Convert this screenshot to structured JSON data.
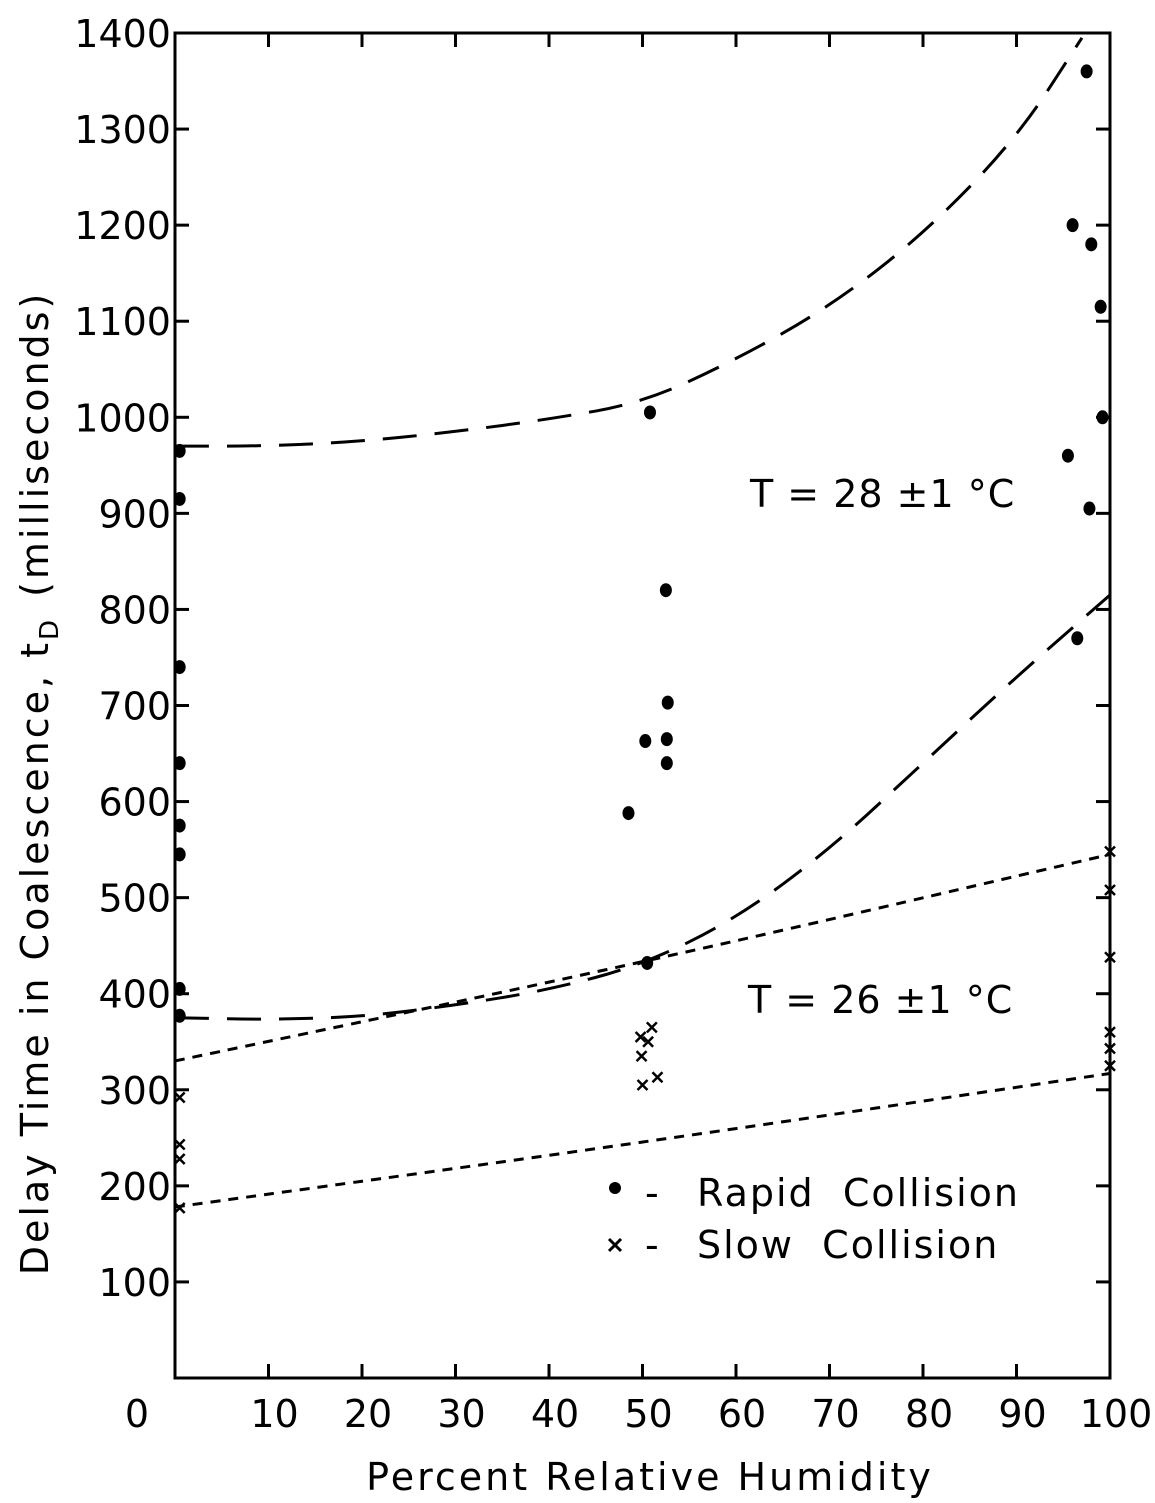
{
  "chart_data": {
    "type": "scatter",
    "xlabel": "Percent Relative Humidity",
    "ylabel": "Delay Time in Coalescence, t",
    "ylabel_sub": "D",
    "ylabel_unit": "(milliseconds)",
    "xlim": [
      0,
      100
    ],
    "ylim": [
      0,
      1400
    ],
    "x_ticks": [
      0,
      10,
      20,
      30,
      40,
      50,
      60,
      70,
      80,
      90,
      100
    ],
    "x_tick_labels": [
      "0",
      "10",
      "20",
      "30",
      "40",
      "50",
      "60",
      "70",
      "80",
      "90",
      "100"
    ],
    "y_ticks": [
      100,
      200,
      300,
      400,
      500,
      600,
      700,
      800,
      900,
      1000,
      1100,
      1200,
      1300,
      1400
    ],
    "y_tick_labels": [
      "100",
      "200",
      "300",
      "400",
      "500",
      "600",
      "700",
      "800",
      "900",
      "1000",
      "1100",
      "1200",
      "1300",
      "1400"
    ],
    "grid": false,
    "legend_position": "bottom-right",
    "annotations": [
      {
        "text": "T = 28 ±1 °C",
        "x": 62,
        "y": 910
      },
      {
        "text": "T = 26 ±1 °C",
        "x": 62,
        "y": 380
      }
    ],
    "series": [
      {
        "name": "Rapid Collision",
        "marker": "dot",
        "points": [
          [
            0.5,
            965
          ],
          [
            0.5,
            915
          ],
          [
            0.5,
            740
          ],
          [
            0.5,
            640
          ],
          [
            0.5,
            575
          ],
          [
            0.5,
            545
          ],
          [
            0.5,
            405
          ],
          [
            0.5,
            377
          ],
          [
            48.5,
            588
          ],
          [
            50.3,
            663
          ],
          [
            50.5,
            432
          ],
          [
            50.8,
            1005
          ],
          [
            52.5,
            820
          ],
          [
            52.7,
            703
          ],
          [
            52.6,
            665
          ],
          [
            52.6,
            640
          ],
          [
            95.5,
            960
          ],
          [
            96,
            1200
          ],
          [
            96.5,
            770
          ],
          [
            97.5,
            1360
          ],
          [
            97.8,
            905
          ],
          [
            98,
            1180
          ],
          [
            99,
            1115
          ],
          [
            99.2,
            1000
          ]
        ]
      },
      {
        "name": "Slow Collision",
        "marker": "cross",
        "points": [
          [
            0.5,
            292
          ],
          [
            0.5,
            243
          ],
          [
            0.5,
            228
          ],
          [
            0.5,
            177
          ],
          [
            49.8,
            355
          ],
          [
            49.9,
            335
          ],
          [
            50,
            305
          ],
          [
            50.6,
            350
          ],
          [
            51,
            365
          ],
          [
            51.6,
            313
          ],
          [
            100,
            548
          ],
          [
            100,
            508
          ],
          [
            100,
            438
          ],
          [
            100,
            360
          ],
          [
            100,
            343
          ],
          [
            100,
            325
          ]
        ]
      }
    ],
    "fits": [
      {
        "style": "long-dash",
        "x": [
          0,
          10,
          20,
          30,
          40,
          50,
          60,
          70,
          80,
          90,
          97
        ],
        "y": [
          970,
          970,
          975,
          985,
          998,
          1015,
          1060,
          1115,
          1190,
          1290,
          1395
        ]
      },
      {
        "style": "long-dash",
        "x": [
          0,
          10,
          20,
          30,
          40,
          50,
          60,
          70,
          80,
          90,
          100
        ],
        "y": [
          375,
          373,
          376,
          388,
          404,
          430,
          478,
          550,
          640,
          730,
          815
        ]
      },
      {
        "style": "short-dash",
        "x": [
          0,
          50,
          100
        ],
        "y": [
          330,
          432,
          545
        ]
      },
      {
        "style": "short-dash",
        "x": [
          0,
          50,
          100
        ],
        "y": [
          178,
          245,
          317
        ]
      }
    ],
    "legend": [
      {
        "marker": "dot",
        "label": "Rapid  Collision"
      },
      {
        "marker": "cross",
        "label": "Slow  Collision"
      }
    ]
  }
}
